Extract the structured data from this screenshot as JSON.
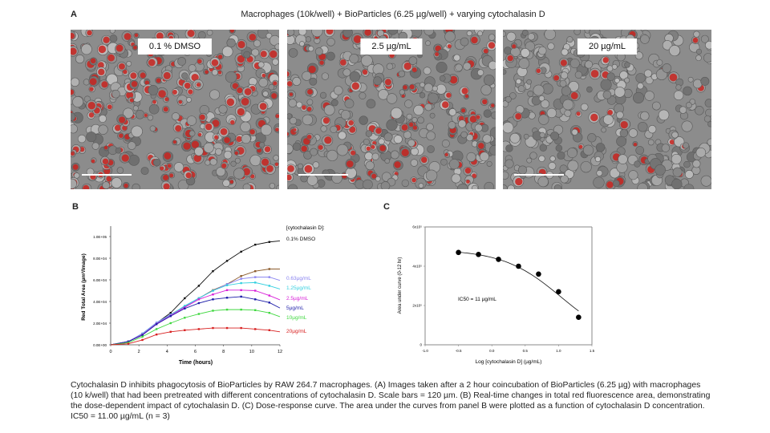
{
  "panel_a": {
    "letter": "A",
    "title": "Macrophages (10k/well)  + BioParticles (6.25 µg/well) + varying cytochalasin D",
    "images": [
      {
        "label": "0.1 % DMSO",
        "red_density": "high"
      },
      {
        "label": "2.5 µg/mL",
        "red_density": "medium"
      },
      {
        "label": "20 µg/mL",
        "red_density": "low"
      }
    ]
  },
  "panel_b_letter": "B",
  "panel_c_letter": "C",
  "caption_lines": [
    "Cytochalasin D inhibits phagocytosis of BioParticles by RAW 264.7 macrophages. (A) Images taken after a 2 hour coincubation of BioParticles (6.25 µg) with macrophages",
    "(10 k/well) that had been pretreated with different concentrations of cytochalasin D. Scale bars = 120 µm. (B) Real-time changes in total red fluorescence area, demonstrating",
    "the dose-dependent impact of cytochalasin D. (C) Dose-response curve. The area under the curves from panel B were plotted as a function of cytochalasin D concentration.",
    "IC50 = 11.00 µg/mL (n = 3)"
  ],
  "chart_data": [
    {
      "type": "line",
      "xlabel": "Time (hours)",
      "ylabel": "Red Total Area (µm²/Image)",
      "xlim": [
        0,
        12
      ],
      "ylim": [
        0,
        110000
      ],
      "xticks": [
        "0",
        "2",
        "4",
        "6",
        "8",
        "10",
        "12"
      ],
      "yticks": [
        "0.0E+00",
        "2.0E+04",
        "4.0E+04",
        "6.0E+04",
        "8.0E+04",
        "1.0E+05"
      ],
      "grid": false,
      "legend_title": "[cytochalasin D]:",
      "legend_placement": "right",
      "x": [
        0,
        1.25,
        2.25,
        3.25,
        4.25,
        5.25,
        6.25,
        7.25,
        8.25,
        9.25,
        10.25,
        11.25,
        12
      ],
      "series": [
        {
          "name": "0.1% DMSO",
          "color": "#111111",
          "values": [
            0,
            3000,
            9000,
            20000,
            29500,
            43000,
            54500,
            68000,
            77500,
            86000,
            92500,
            95000,
            96000
          ]
        },
        {
          "name": "",
          "color": "#8b5a2b",
          "values": [
            0,
            3000,
            10000,
            20000,
            28000,
            35500,
            43000,
            50500,
            56000,
            63500,
            68000,
            70000,
            70000
          ]
        },
        {
          "name": "0.63µg/mL",
          "color": "#8a84f0",
          "values": [
            0,
            3000,
            10500,
            20500,
            28000,
            35000,
            43000,
            50000,
            56000,
            61000,
            62500,
            62500,
            59500
          ]
        },
        {
          "name": "1.25µg/mL",
          "color": "#35d0e0",
          "values": [
            0,
            3000,
            10000,
            20000,
            27500,
            36000,
            43000,
            50000,
            55000,
            57000,
            57500,
            54500,
            51500
          ]
        },
        {
          "name": "2.5µg/mL",
          "color": "#d820d8",
          "values": [
            0,
            3000,
            9500,
            19500,
            27000,
            34500,
            42000,
            46500,
            50500,
            50500,
            50000,
            45500,
            41500
          ]
        },
        {
          "name": "5µg/mL",
          "color": "#1c1ca8",
          "values": [
            0,
            3000,
            9000,
            19000,
            26500,
            33500,
            38500,
            42000,
            43500,
            44500,
            42000,
            39000,
            34000
          ]
        },
        {
          "name": "10µg/mL",
          "color": "#40d840",
          "values": [
            0,
            2000,
            7500,
            14500,
            20000,
            25000,
            28500,
            31500,
            32500,
            32500,
            32000,
            29500,
            26000
          ]
        },
        {
          "name": "20µg/mL",
          "color": "#d82020",
          "values": [
            0,
            1000,
            4500,
            9500,
            12000,
            13500,
            14500,
            15500,
            15500,
            15500,
            14500,
            13500,
            12000
          ]
        }
      ]
    },
    {
      "type": "scatter",
      "xlabel": "Log [cytochalasin D] (µg/mL)",
      "ylabel": "Area under curve (0-12 hr)",
      "xlim": [
        -1.0,
        1.5
      ],
      "ylim": [
        0,
        600000
      ],
      "xticks": [
        "-1.0",
        "-0.5",
        "0.0",
        "0.5",
        "1.0",
        "1.5"
      ],
      "yticks": [
        "0",
        "2x10⁵",
        "4x10⁵",
        "6x10⁵"
      ],
      "grid": false,
      "annotation": "IC50 = 11 µg/mL",
      "x": [
        -0.5,
        -0.2,
        0.1,
        0.4,
        0.7,
        1.0,
        1.3
      ],
      "y": [
        470000,
        460000,
        435000,
        400000,
        360000,
        270000,
        140000
      ],
      "fit_curve": "sigmoidal dose-response"
    }
  ]
}
